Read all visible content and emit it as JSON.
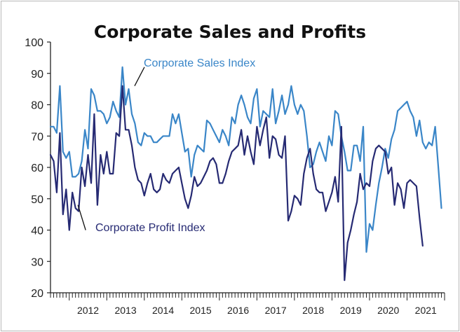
{
  "chart_data": {
    "type": "line",
    "title": "Corporate Sales and Profits",
    "xlabel": "",
    "ylabel": "",
    "ylim": [
      20,
      100
    ],
    "yticks": [
      20,
      30,
      40,
      50,
      60,
      70,
      80,
      90,
      100
    ],
    "year_labels": [
      "2012",
      "2013",
      "2014",
      "2015",
      "2016",
      "2017",
      "2018",
      "2019",
      "2020",
      "2021"
    ],
    "x_start": "2011-07",
    "x_end": "2022-01",
    "grid": false,
    "legend": "inline annotations",
    "colors": {
      "sales": "#3a86c8",
      "profit": "#262a73"
    },
    "series": [
      {
        "name": "Corporate Sales Index",
        "key": "sales",
        "start": "2011-07",
        "values": [
          73,
          73,
          71,
          86,
          65,
          63,
          65,
          57,
          57,
          58,
          62,
          72,
          66,
          85,
          83,
          78,
          78,
          77,
          74,
          76,
          81,
          78,
          76,
          92,
          80,
          85,
          77,
          74,
          68,
          67,
          71,
          70,
          70,
          68,
          68,
          69,
          70,
          70,
          70,
          77,
          74,
          77,
          71,
          65,
          66,
          57,
          64,
          67,
          66,
          65,
          75,
          74,
          72,
          70,
          68,
          72,
          70,
          67,
          76,
          74,
          80,
          83,
          80,
          76,
          74,
          82,
          85,
          73,
          78,
          77,
          76,
          85,
          74,
          78,
          83,
          77,
          80,
          86,
          80,
          77,
          80,
          78,
          70,
          60,
          61,
          65,
          68,
          65,
          62,
          70,
          67,
          78,
          77,
          70,
          65,
          59,
          59,
          67,
          67,
          62,
          73,
          33,
          42,
          40,
          48,
          55,
          60,
          66,
          63,
          69,
          72,
          78,
          79,
          80,
          81,
          78,
          76,
          70,
          75,
          68,
          66,
          68,
          67,
          73,
          60,
          47
        ]
      },
      {
        "name": "Corporate Profit Index",
        "key": "profit",
        "start": "2011-07",
        "values": [
          64,
          62,
          52,
          71,
          45,
          53,
          40,
          52,
          47,
          46,
          60,
          54,
          64,
          55,
          77,
          48,
          64,
          58,
          65,
          58,
          58,
          71,
          70,
          86,
          72,
          72,
          67,
          60,
          56,
          55,
          51,
          55,
          58,
          53,
          52,
          53,
          58,
          56,
          55,
          58,
          59,
          60,
          55,
          50,
          47,
          51,
          57,
          54,
          55,
          57,
          59,
          62,
          63,
          61,
          55,
          55,
          58,
          62,
          65,
          66,
          67,
          72,
          64,
          70,
          65,
          61,
          73,
          67,
          72,
          76,
          63,
          70,
          69,
          64,
          63,
          70,
          43,
          46,
          51,
          50,
          48,
          58,
          63,
          66,
          58,
          53,
          52,
          52,
          46,
          49,
          52,
          57,
          49,
          73,
          24,
          36,
          40,
          45,
          49,
          58,
          53,
          55,
          54,
          62,
          66,
          67,
          66,
          65,
          58,
          60,
          48,
          55,
          53,
          47,
          55,
          56,
          55,
          54,
          44,
          35
        ]
      }
    ],
    "annotations": [
      {
        "text": "Corporate Sales Index",
        "series": "sales"
      },
      {
        "text": "Corporate Profit Index",
        "series": "profit"
      }
    ]
  }
}
